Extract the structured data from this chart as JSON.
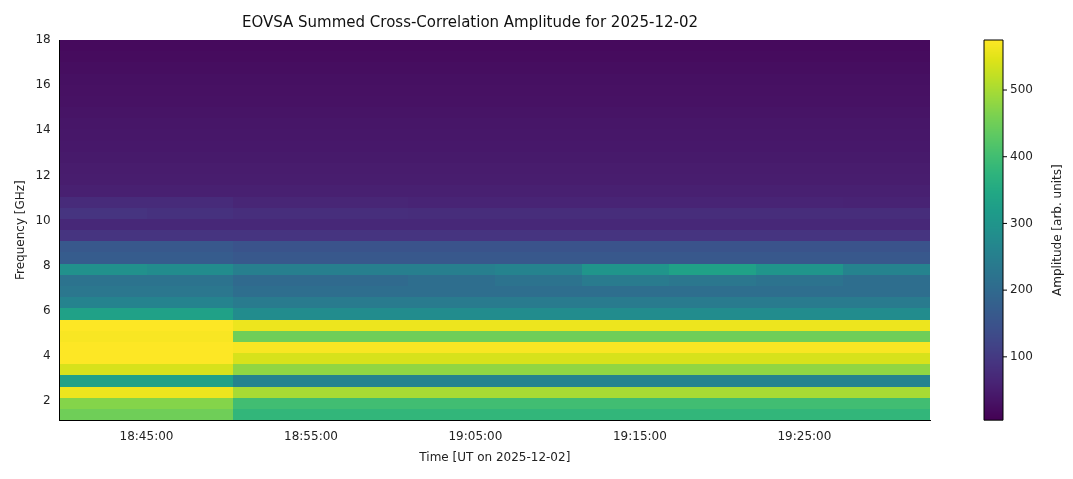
{
  "chart_data": {
    "type": "heatmap",
    "title": "EOVSA Summed Cross-Correlation Amplitude for 2025-12-02",
    "xlabel": "Time [UT on 2025-12-02]",
    "ylabel": "Frequency [GHz]",
    "clabel": "Amplitude [arb. units]",
    "x": [
      18.706,
      18.794,
      18.882,
      18.97,
      19.059,
      19.147,
      19.235,
      19.323,
      19.412,
      19.5
    ],
    "y": [
      17.75,
      17.26,
      16.76,
      16.27,
      15.77,
      15.28,
      14.78,
      14.28,
      13.79,
      13.29,
      12.8,
      12.3,
      11.8,
      11.31,
      10.81,
      10.32,
      9.82,
      9.33,
      8.83,
      8.34,
      7.84,
      7.35,
      6.85,
      6.36,
      5.86,
      5.36,
      4.87,
      4.37,
      3.88,
      3.38,
      2.89,
      2.39,
      1.9,
      1.4
    ],
    "cells": [
      [
        20,
        20,
        20,
        20,
        20,
        20,
        20,
        20,
        20,
        20
      ],
      [
        22,
        22,
        22,
        22,
        22,
        22,
        22,
        22,
        22,
        22
      ],
      [
        25,
        25,
        25,
        25,
        25,
        25,
        25,
        25,
        25,
        25
      ],
      [
        28,
        28,
        28,
        28,
        28,
        28,
        28,
        28,
        28,
        28
      ],
      [
        30,
        30,
        30,
        30,
        30,
        30,
        30,
        30,
        30,
        30
      ],
      [
        32,
        32,
        32,
        32,
        32,
        32,
        32,
        32,
        32,
        32
      ],
      [
        35,
        35,
        35,
        35,
        35,
        35,
        35,
        35,
        35,
        35
      ],
      [
        38,
        38,
        38,
        38,
        38,
        38,
        38,
        38,
        38,
        38
      ],
      [
        40,
        40,
        40,
        40,
        40,
        40,
        40,
        40,
        40,
        40
      ],
      [
        42,
        42,
        42,
        42,
        42,
        42,
        42,
        42,
        42,
        42
      ],
      [
        45,
        45,
        45,
        45,
        45,
        45,
        45,
        45,
        45,
        45
      ],
      [
        48,
        48,
        48,
        48,
        48,
        48,
        48,
        48,
        48,
        48
      ],
      [
        50,
        50,
        50,
        50,
        50,
        50,
        50,
        50,
        50,
        50
      ],
      [
        55,
        55,
        55,
        55,
        55,
        55,
        55,
        55,
        55,
        55
      ],
      [
        75,
        75,
        65,
        65,
        62,
        62,
        62,
        62,
        62,
        60
      ],
      [
        90,
        85,
        80,
        80,
        78,
        78,
        78,
        78,
        78,
        78
      ],
      [
        70,
        70,
        70,
        70,
        70,
        70,
        70,
        70,
        70,
        70
      ],
      [
        90,
        90,
        90,
        90,
        90,
        90,
        90,
        90,
        90,
        90
      ],
      [
        160,
        160,
        150,
        150,
        150,
        150,
        150,
        150,
        150,
        150
      ],
      [
        170,
        170,
        160,
        160,
        160,
        160,
        160,
        160,
        160,
        160
      ],
      [
        290,
        280,
        250,
        250,
        250,
        260,
        300,
        330,
        300,
        260
      ],
      [
        220,
        220,
        200,
        200,
        210,
        220,
        240,
        230,
        220,
        210
      ],
      [
        230,
        230,
        210,
        210,
        210,
        210,
        210,
        210,
        210,
        210
      ],
      [
        260,
        260,
        240,
        240,
        240,
        240,
        240,
        240,
        240,
        240
      ],
      [
        330,
        330,
        280,
        280,
        280,
        280,
        280,
        280,
        280,
        280
      ],
      [
        575,
        575,
        560,
        560,
        560,
        560,
        560,
        560,
        560,
        560
      ],
      [
        570,
        570,
        450,
        450,
        450,
        450,
        450,
        450,
        450,
        450
      ],
      [
        575,
        575,
        570,
        570,
        570,
        570,
        570,
        570,
        570,
        570
      ],
      [
        575,
        575,
        540,
        540,
        540,
        540,
        540,
        540,
        540,
        540
      ],
      [
        540,
        540,
        480,
        480,
        480,
        480,
        480,
        480,
        480,
        480
      ],
      [
        330,
        330,
        260,
        260,
        260,
        260,
        260,
        260,
        260,
        260
      ],
      [
        560,
        560,
        500,
        500,
        500,
        500,
        500,
        500,
        500,
        500
      ],
      [
        470,
        470,
        400,
        400,
        400,
        400,
        400,
        400,
        400,
        400
      ],
      [
        450,
        450,
        380,
        380,
        380,
        380,
        380,
        380,
        380,
        380
      ]
    ],
    "clim": [
      5,
      575
    ],
    "cticks": [
      100,
      200,
      300,
      400,
      500
    ],
    "xlim": [
      18.662,
      19.544
    ],
    "xticks": [
      {
        "value": 18.75,
        "label": "18:45:00"
      },
      {
        "value": 18.9167,
        "label": "18:55:00"
      },
      {
        "value": 19.0833,
        "label": "19:05:00"
      },
      {
        "value": 19.25,
        "label": "19:15:00"
      },
      {
        "value": 19.4167,
        "label": "19:25:00"
      }
    ],
    "ylim": [
      1.15,
      18
    ],
    "yticks": [
      2,
      4,
      6,
      8,
      10,
      12,
      14,
      16,
      18
    ]
  }
}
